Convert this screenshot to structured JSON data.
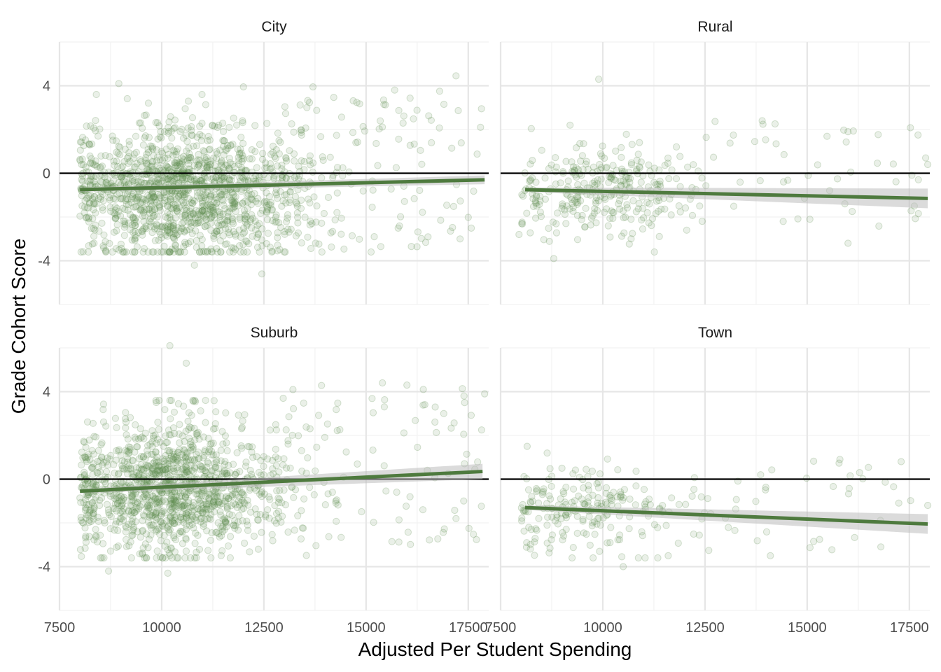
{
  "chart_data": {
    "type": "scatter",
    "facet_layout": "2x2",
    "xlabel": "Adjusted Per Student Spending",
    "ylabel": "Grade Cohort Score",
    "xlim": [
      7500,
      18000
    ],
    "ylim": [
      -6,
      6
    ],
    "x_ticks": [
      7500,
      10000,
      12500,
      15000,
      17500
    ],
    "x_tick_labels": [
      "7500",
      "10000",
      "12500",
      "15000",
      "17500"
    ],
    "y_ticks": [
      -4,
      0,
      4
    ],
    "y_tick_labels": [
      "-4",
      "0",
      "4"
    ],
    "reference_line_y": 0,
    "grid": true,
    "colors": {
      "point": "#5a8a4a",
      "trend": "#4e7a3e",
      "ribbon": "#bdbdbd",
      "reference": "#000000",
      "grid_major": "#e6e6e6",
      "grid_minor": "#f2f2f2"
    },
    "panels": [
      {
        "name": "City",
        "trend": {
          "x": [
            8000,
            17900
          ],
          "y": [
            -0.75,
            -0.3
          ],
          "se": [
            0.1,
            0.2
          ]
        },
        "cloud": {
          "n": 1400,
          "x_center": 10600,
          "x_spread": 1500,
          "y_center": -0.9,
          "y_spread": 1.5,
          "tail_n": 110,
          "tail_x": [
            13000,
            17900
          ],
          "tail_y": [
            -3.5,
            3.5
          ]
        },
        "outliers": [
          [
            17200,
            4.45
          ],
          [
            8950,
            4.1
          ],
          [
            12450,
            -4.6
          ],
          [
            12000,
            3.95
          ],
          [
            13700,
            3.95
          ],
          [
            15700,
            3.8
          ],
          [
            16800,
            3.75
          ],
          [
            17800,
            2.1
          ],
          [
            17300,
            -3.0
          ],
          [
            10800,
            -4.2
          ],
          [
            15200,
            -2.9
          ]
        ]
      },
      {
        "name": "Rural",
        "trend": {
          "x": [
            8100,
            17950
          ],
          "y": [
            -0.75,
            -1.15
          ],
          "se": [
            0.1,
            0.45
          ]
        },
        "cloud": {
          "n": 310,
          "x_center": 9900,
          "x_spread": 1200,
          "y_center": -0.8,
          "y_spread": 1.0,
          "tail_n": 45,
          "tail_x": [
            12500,
            17900
          ],
          "tail_y": [
            -2.8,
            2.4
          ]
        },
        "outliers": [
          [
            9900,
            4.3
          ],
          [
            9200,
            2.2
          ],
          [
            13900,
            2.4
          ],
          [
            16000,
            1.9
          ],
          [
            17950,
            0.4
          ],
          [
            7950,
            -2.8
          ],
          [
            8800,
            -3.9
          ],
          [
            16000,
            -3.2
          ]
        ]
      },
      {
        "name": "Suburb",
        "trend": {
          "x": [
            8000,
            17850
          ],
          "y": [
            -0.55,
            0.35
          ],
          "se": [
            0.1,
            0.35
          ]
        },
        "cloud": {
          "n": 1250,
          "x_center": 10200,
          "x_spread": 1350,
          "y_center": -0.45,
          "y_spread": 1.45,
          "tail_n": 90,
          "tail_x": [
            12800,
            17900
          ],
          "tail_y": [
            -3.0,
            4.3
          ]
        },
        "outliers": [
          [
            10200,
            6.1
          ],
          [
            10600,
            5.3
          ],
          [
            15400,
            4.4
          ],
          [
            16000,
            4.3
          ],
          [
            16400,
            4.1
          ],
          [
            17900,
            3.9
          ],
          [
            8700,
            -4.2
          ],
          [
            10150,
            -4.3
          ],
          [
            17200,
            -1.8
          ],
          [
            16900,
            3.0
          ]
        ]
      },
      {
        "name": "Town",
        "trend": {
          "x": [
            8100,
            17950
          ],
          "y": [
            -1.3,
            -2.05
          ],
          "se": [
            0.1,
            0.45
          ]
        },
        "cloud": {
          "n": 210,
          "x_center": 9700,
          "x_spread": 1100,
          "y_center": -1.4,
          "y_spread": 0.95,
          "tail_n": 40,
          "tail_x": [
            12000,
            17900
          ],
          "tail_y": [
            -3.5,
            0.9
          ]
        },
        "outliers": [
          [
            8150,
            1.5
          ],
          [
            9000,
            0.5
          ],
          [
            15800,
            0.9
          ],
          [
            17300,
            0.8
          ],
          [
            10500,
            -4.0
          ],
          [
            14100,
            -3.5
          ],
          [
            11600,
            -3.5
          ],
          [
            17950,
            -1.2
          ]
        ]
      }
    ]
  }
}
